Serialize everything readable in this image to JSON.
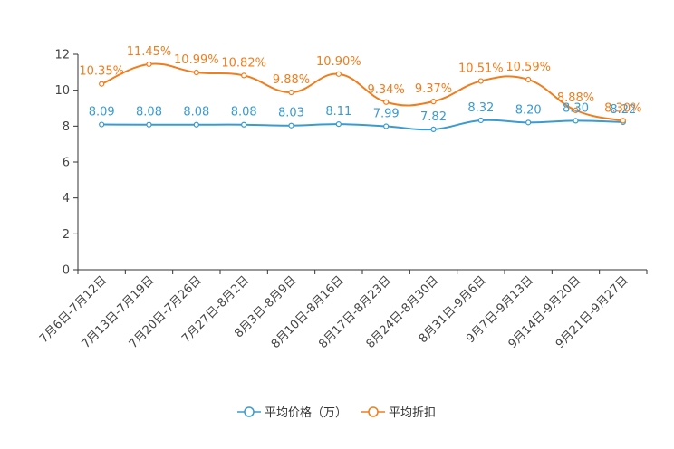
{
  "chart_data": {
    "type": "line",
    "categories": [
      "7月6日-7月12日",
      "7月13日-7月19日",
      "7月20日-7月26日",
      "7月27日-8月2日",
      "8月3日-8月9日",
      "8月10日-8月16日",
      "8月17日-8月23日",
      "8月24日-8月30日",
      "8月31日-9月6日",
      "9月7日-9月13日",
      "9月14日-9月20日",
      "9月21日-9月27日"
    ],
    "ylim": [
      0,
      12
    ],
    "yticks": [
      0,
      2,
      4,
      6,
      8,
      10,
      12
    ],
    "series": [
      {
        "name": "平均价格（万）",
        "color": "#3a9bd0",
        "values": [
          8.09,
          8.08,
          8.08,
          8.08,
          8.03,
          8.11,
          7.99,
          7.82,
          8.32,
          8.2,
          8.3,
          8.22
        ],
        "labels": [
          "8.09",
          "8.08",
          "8.08",
          "8.08",
          "8.03",
          "8.11",
          "7.99",
          "7.82",
          "8.32",
          "8.20",
          "8.30",
          "8.22"
        ]
      },
      {
        "name": "平均折扣",
        "color": "#f07d1e",
        "values": [
          10.35,
          11.45,
          10.99,
          10.82,
          9.88,
          10.9,
          9.34,
          9.37,
          10.51,
          10.59,
          8.88,
          8.3
        ],
        "labels": [
          "10.35%",
          "11.45%",
          "10.99%",
          "10.82%",
          "9.88%",
          "10.90%",
          "9.34%",
          "9.37%",
          "10.51%",
          "10.59%",
          "8.88%",
          "8.30%"
        ]
      }
    ],
    "legend": "bottom",
    "title": "",
    "xlabel": "",
    "ylabel": ""
  }
}
